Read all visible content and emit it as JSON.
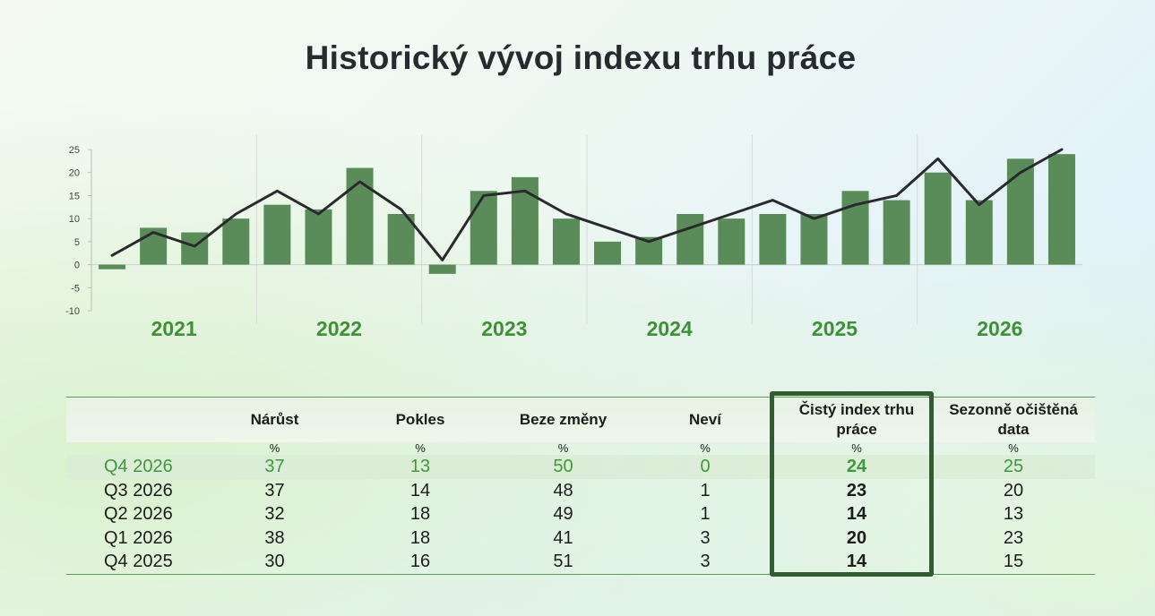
{
  "title": "Historický vývoj indexu trhu práce",
  "colors": {
    "bar": "#5a8c5a",
    "line": "#2a2a2e",
    "year_label": "#3e9136",
    "current_row_text": "#3c9a39",
    "highlight_border": "#305d31"
  },
  "chart_data": {
    "type": "bar",
    "y_axis": {
      "min": -10,
      "max": 25,
      "ticks": [
        25,
        20,
        15,
        10,
        5,
        0,
        -5,
        -10
      ]
    },
    "year_groups": [
      {
        "label": "2021",
        "quarters": 4
      },
      {
        "label": "2022",
        "quarters": 4
      },
      {
        "label": "2023",
        "quarters": 4
      },
      {
        "label": "2024",
        "quarters": 4
      },
      {
        "label": "2025",
        "quarters": 4
      },
      {
        "label": "2026",
        "quarters": 4
      }
    ],
    "series": [
      {
        "type": "bar",
        "values": [
          -1,
          8,
          7,
          10,
          13,
          12,
          21,
          11,
          -2,
          16,
          19,
          10,
          5,
          6,
          11,
          10,
          11,
          11,
          16,
          14,
          20,
          14,
          23,
          24
        ]
      },
      {
        "type": "line",
        "values": [
          2,
          7,
          4,
          11,
          16,
          11,
          18,
          12,
          1,
          15,
          16,
          11,
          8,
          5,
          8,
          11,
          14,
          10,
          13,
          15,
          23,
          13,
          20,
          25
        ]
      }
    ],
    "grid": "vertical separators between years"
  },
  "table": {
    "headers": [
      "",
      "Nárůst",
      "Pokles",
      "Beze změny",
      "Neví",
      "Čistý index trhu práce",
      "Sezonně očištěná data"
    ],
    "units": [
      "",
      "%",
      "%",
      "%",
      "%",
      "%",
      "%"
    ],
    "rows": [
      [
        "Q4 2026",
        "37",
        "13",
        "50",
        "0",
        "24",
        "25"
      ],
      [
        "Q3 2026",
        "37",
        "14",
        "48",
        "1",
        "23",
        "20"
      ],
      [
        "Q2 2026",
        "32",
        "18",
        "49",
        "1",
        "14",
        "13"
      ],
      [
        "Q1 2026",
        "38",
        "18",
        "41",
        "3",
        "20",
        "23"
      ],
      [
        "Q4 2025",
        "30",
        "16",
        "51",
        "3",
        "14",
        "15"
      ]
    ]
  }
}
